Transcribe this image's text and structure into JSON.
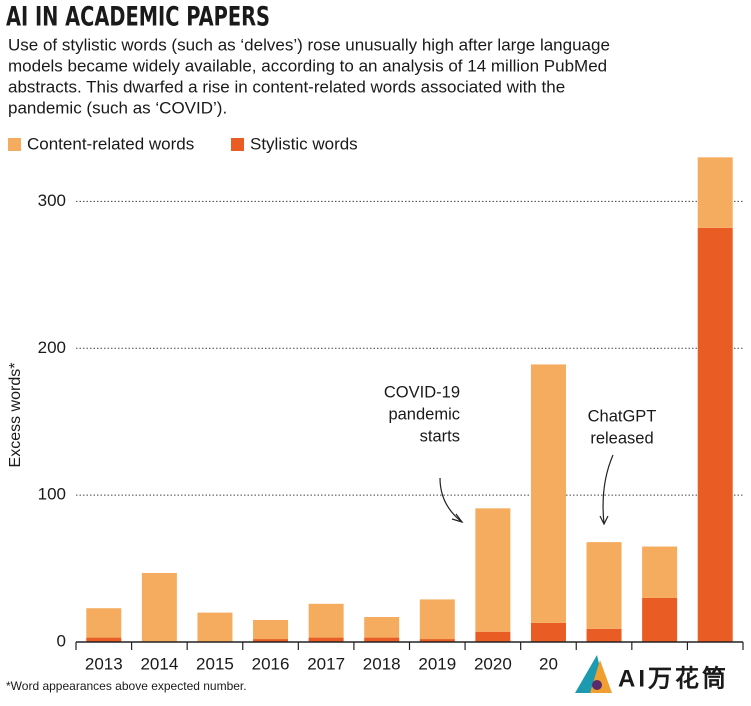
{
  "chart_data": {
    "type": "stacked_bar",
    "title": "AI IN ACADEMIC PAPERS",
    "subtitle": [
      "Use of stylistic words (such as ‘delves’) rose unusually high after large language",
      "models became widely available, according to an analysis of 14 million PubMed",
      "abstracts. This dwarfed a rise in content-related words associated with the",
      "pandemic (such as ‘COVID’)."
    ],
    "y_label": "Excess words*",
    "footnote": "*Word appearances above expected number.",
    "categories": [
      "2013",
      "2014",
      "2015",
      "2016",
      "2017",
      "2018",
      "2019",
      "2020",
      "20",
      null,
      null,
      null
    ],
    "series": [
      {
        "name": "Content-related words",
        "color": "#f5ac5e",
        "values": [
          20,
          47,
          20,
          13,
          23,
          14,
          27,
          84,
          176,
          59,
          35,
          48
        ]
      },
      {
        "name": "Stylistic words",
        "color": "#e95c24",
        "values": [
          3,
          0,
          0,
          2,
          3,
          3,
          2,
          7,
          13,
          9,
          30,
          282
        ]
      }
    ],
    "ylim": [
      0,
      335
    ],
    "yticks": [
      0,
      100,
      200,
      300
    ],
    "grid": true,
    "annotations": [
      {
        "lines": [
          "COVID-19",
          "pandemic",
          "starts"
        ]
      },
      {
        "lines": [
          "ChatGPT",
          "released"
        ]
      }
    ],
    "watermark": "AI万花筒"
  }
}
